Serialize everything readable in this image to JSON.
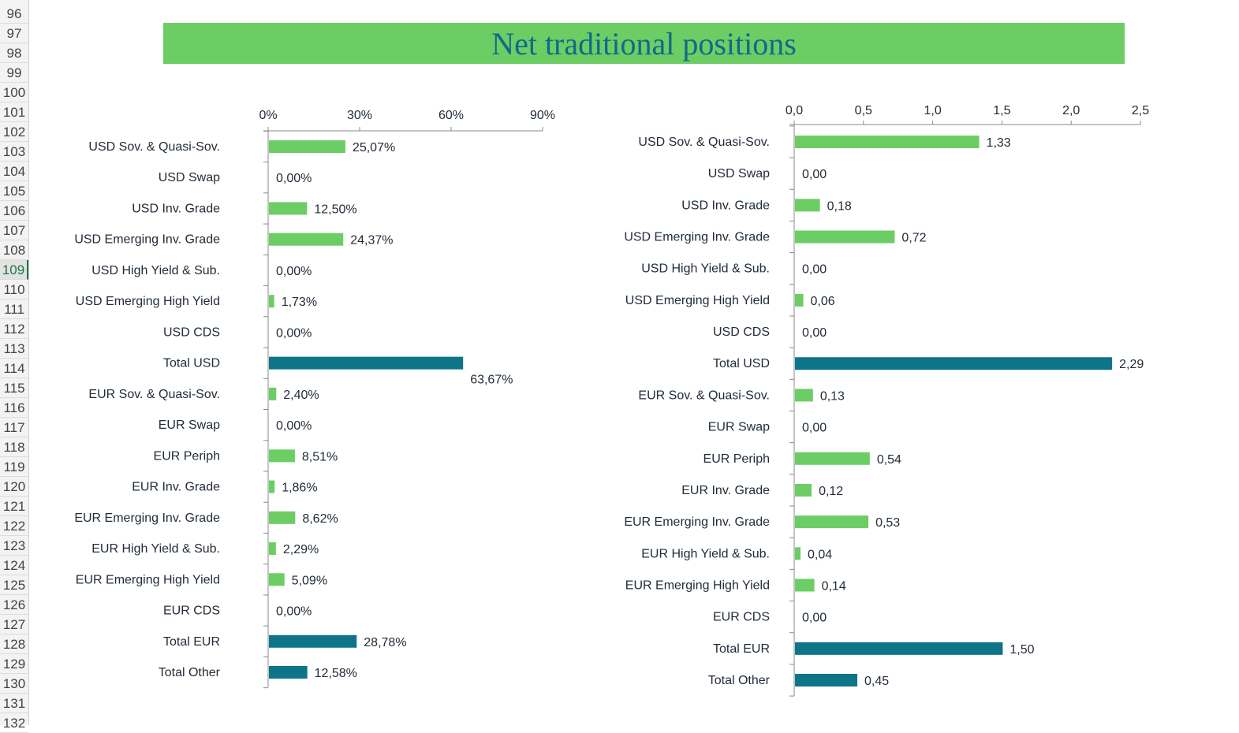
{
  "spreadsheet": {
    "row_numbers": [
      96,
      97,
      98,
      99,
      100,
      101,
      102,
      103,
      104,
      105,
      106,
      107,
      108,
      109,
      110,
      111,
      112,
      113,
      114,
      115,
      116,
      117,
      118,
      119,
      120,
      121,
      122,
      123,
      124,
      125,
      126,
      127,
      128,
      129,
      130,
      131,
      132
    ],
    "selected_row": 109
  },
  "title": "Net traditional positions",
  "colors": {
    "bar": "#6ccd64",
    "total_bar": "#0e7488",
    "title_bg": "#6ccd64",
    "title_text": "#11698a"
  },
  "chart_data": [
    {
      "type": "bar",
      "orientation": "horizontal",
      "categories": [
        "USD Sov. & Quasi-Sov.",
        "USD Swap",
        "USD Inv. Grade",
        "USD Emerging Inv. Grade",
        "USD High Yield & Sub.",
        "USD Emerging High Yield",
        "USD CDS",
        "Total USD",
        "EUR Sov. & Quasi-Sov.",
        "EUR Swap",
        "EUR Periph",
        "EUR Inv. Grade",
        "EUR Emerging Inv. Grade",
        "EUR High Yield & Sub.",
        "EUR Emerging High Yield",
        "EUR CDS",
        "Total EUR",
        "Total Other"
      ],
      "values": [
        25.07,
        0,
        12.5,
        24.37,
        0,
        1.73,
        0,
        63.67,
        2.4,
        0,
        8.51,
        1.86,
        8.62,
        2.29,
        5.09,
        0,
        28.78,
        12.58
      ],
      "data_labels": [
        "25,07%",
        "0,00%",
        "12,50%",
        "24,37%",
        "0,00%",
        "1,73%",
        "0,00%",
        "63,67%",
        "2,40%",
        "0,00%",
        "8,51%",
        "1,86%",
        "8,62%",
        "2,29%",
        "5,09%",
        "0,00%",
        "28,78%",
        "12,58%"
      ],
      "totals": [
        "Total USD",
        "Total EUR",
        "Total Other"
      ],
      "xlim": [
        0,
        90
      ],
      "x_ticks": [
        0,
        30,
        60,
        90
      ],
      "x_tick_labels": [
        "0%",
        "30%",
        "60%",
        "90%"
      ],
      "axis_position": "top",
      "grid": false
    },
    {
      "type": "bar",
      "orientation": "horizontal",
      "categories": [
        "USD Sov. & Quasi-Sov.",
        "USD Swap",
        "USD Inv. Grade",
        "USD Emerging Inv. Grade",
        "USD High Yield & Sub.",
        "USD Emerging High Yield",
        "USD CDS",
        "Total USD",
        "EUR Sov. & Quasi-Sov.",
        "EUR Swap",
        "EUR Periph",
        "EUR Inv. Grade",
        "EUR Emerging Inv. Grade",
        "EUR High Yield & Sub.",
        "EUR Emerging High Yield",
        "EUR CDS",
        "Total EUR",
        "Total Other"
      ],
      "values": [
        1.33,
        0,
        0.18,
        0.72,
        0,
        0.06,
        0,
        2.29,
        0.13,
        0,
        0.54,
        0.12,
        0.53,
        0.04,
        0.14,
        0,
        1.5,
        0.45
      ],
      "data_labels": [
        "1,33",
        "0,00",
        "0,18",
        "0,72",
        "0,00",
        "0,06",
        "0,00",
        "2,29",
        "0,13",
        "0,00",
        "0,54",
        "0,12",
        "0,53",
        "0,04",
        "0,14",
        "0,00",
        "1,50",
        "0,45"
      ],
      "totals": [
        "Total USD",
        "Total EUR",
        "Total Other"
      ],
      "xlim": [
        0,
        2.5
      ],
      "x_ticks": [
        0,
        0.5,
        1,
        1.5,
        2,
        2.5
      ],
      "x_tick_labels": [
        "0,0",
        "0,5",
        "1,0",
        "1,5",
        "2,0",
        "2,5"
      ],
      "axis_position": "top",
      "grid": false
    }
  ]
}
